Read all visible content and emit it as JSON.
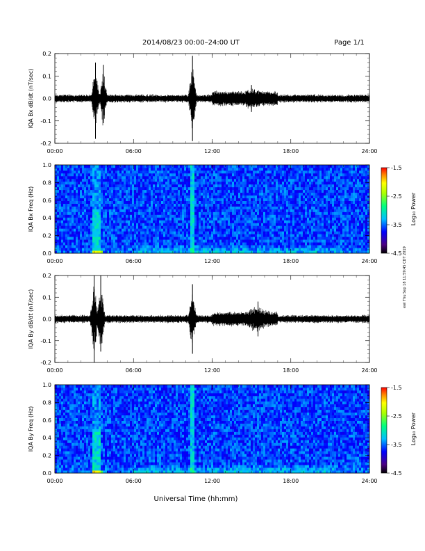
{
  "header": {
    "date_range": "2014/08/23  00:00–24:00 UT",
    "page": "Page 1/1"
  },
  "footer": {
    "x_axis_label": "Universal Time (hh:mm)",
    "side_stamp": "ewl Thu Sep 18 11:59:45 CDT 2019"
  },
  "chart_data": [
    {
      "type": "line",
      "id": "bx-waveform",
      "ylabel": "IQA Bx dB/dt (nT/sec)",
      "x_ticks": [
        "00:00",
        "06:00",
        "12:00",
        "18:00",
        "24:00"
      ],
      "x_range": [
        0,
        24
      ],
      "ylim": [
        -0.2,
        0.2
      ],
      "y_ticks": [
        "-0.2",
        "-0.1",
        "0.0",
        "0.1",
        "0.2"
      ],
      "events": [
        {
          "x": 3.1,
          "y_max": 0.16,
          "y_min": -0.18
        },
        {
          "x": 3.7,
          "y_max": 0.15,
          "y_min": -0.11
        },
        {
          "x": 10.5,
          "y_max": 0.19,
          "y_min": -0.19
        },
        {
          "x": 15.0,
          "y_max": 0.06,
          "y_min": -0.06
        }
      ]
    },
    {
      "type": "heatmap",
      "id": "bx-spectrogram",
      "ylabel": "IQA Bx Freq (Hz)",
      "x_ticks": [
        "00:00",
        "06:00",
        "12:00",
        "18:00",
        "24:00"
      ],
      "x_range": [
        0,
        24
      ],
      "ylim": [
        0.0,
        1.0
      ],
      "y_ticks": [
        "0.0",
        "0.2",
        "0.4",
        "0.6",
        "0.8",
        "1.0"
      ],
      "colorbar": {
        "label": "Log₁₀ Power",
        "ticks": [
          "-1.5",
          "-2.5",
          "-3.5",
          "-4.5"
        ],
        "range": [
          -4.5,
          -1.5
        ]
      }
    },
    {
      "type": "line",
      "id": "by-waveform",
      "ylabel": "IQA By dB/dt (nT/sec)",
      "x_ticks": [
        "00:00",
        "06:00",
        "12:00",
        "18:00",
        "24:00"
      ],
      "x_range": [
        0,
        24
      ],
      "ylim": [
        -0.2,
        0.2
      ],
      "y_ticks": [
        "-0.2",
        "-0.1",
        "0.0",
        "0.1",
        "0.2"
      ],
      "events": [
        {
          "x": 3.0,
          "y_max": 0.2,
          "y_min": -0.2
        },
        {
          "x": 3.5,
          "y_max": 0.2,
          "y_min": -0.15
        },
        {
          "x": 10.5,
          "y_max": 0.16,
          "y_min": -0.16
        },
        {
          "x": 15.5,
          "y_max": 0.08,
          "y_min": -0.08
        }
      ]
    },
    {
      "type": "heatmap",
      "id": "by-spectrogram",
      "ylabel": "IQA By Freq (Hz)",
      "x_ticks": [
        "00:00",
        "06:00",
        "12:00",
        "18:00",
        "24:00"
      ],
      "x_range": [
        0,
        24
      ],
      "ylim": [
        0.0,
        1.0
      ],
      "y_ticks": [
        "0.0",
        "0.2",
        "0.4",
        "0.6",
        "0.8",
        "1.0"
      ],
      "colorbar": {
        "label": "Log₁₀ Power",
        "ticks": [
          "-1.5",
          "-2.5",
          "-3.5",
          "-4.5"
        ],
        "range": [
          -4.5,
          -1.5
        ]
      }
    }
  ]
}
